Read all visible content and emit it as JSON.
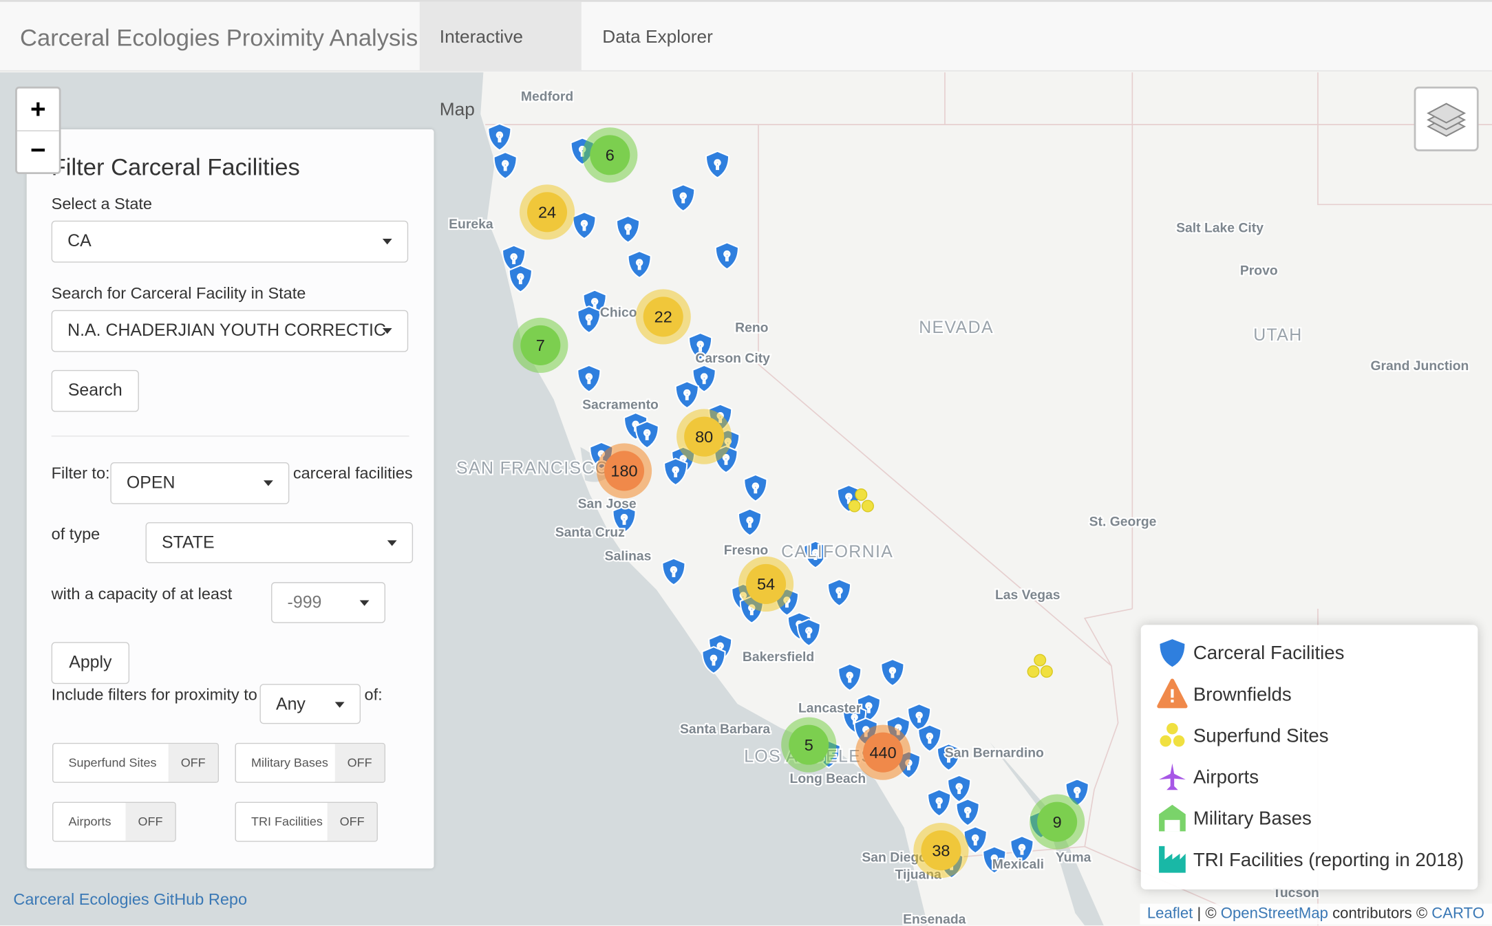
{
  "navbar": {
    "title": "Carceral Ecologies Proximity Analysis",
    "tabs": [
      "Interactive Map",
      "Data Explorer"
    ]
  },
  "zoom": {
    "in": "+",
    "out": "−"
  },
  "filter": {
    "title": "Filter Carceral Facilities",
    "state_label": "Select a State",
    "state": "CA",
    "search_label": "Search for Carceral Facility in State",
    "facility": "N.A. CHADERJIAN YOUTH CORRECTIC",
    "search_button": "Search",
    "filter_to": "Filter to:",
    "status": "OPEN",
    "status_suffix": "carceral facilities",
    "of_type": "of type",
    "type": "STATE",
    "capacity_label": "with a capacity of at least",
    "capacity": "-999",
    "apply": "Apply",
    "proximity_label": "Include filters for proximity to",
    "proximity": "Any",
    "proximity_suffix": "of:",
    "toggles": [
      {
        "label": "Superfund Sites",
        "state": "OFF"
      },
      {
        "label": "Military Bases",
        "state": "OFF"
      },
      {
        "label": "Airports",
        "state": "OFF"
      },
      {
        "label": "TRI Facilities",
        "state": "OFF"
      }
    ]
  },
  "map_labels": [
    "Medford",
    "Eureka",
    "Chico",
    "Reno",
    "Carson City",
    "Sacramento",
    "SAN FRANCISCO",
    "San Jose",
    "Santa Cruz",
    "Salinas",
    "Fresno",
    "CALIFORNIA",
    "Bakersfield",
    "Lancaster",
    "Santa Barbara",
    "LOS ANGELES",
    "Long Beach",
    "San Bernardino",
    "San Diego",
    "Tijuana",
    "Mexicali",
    "Yuma",
    "Ensenada",
    "NEVADA",
    "UTAH",
    "Salt Lake City",
    "Provo",
    "Grand Junction",
    "St. George",
    "Las Vegas",
    "Tucson"
  ],
  "clusters": [
    6,
    24,
    22,
    7,
    80,
    180,
    54,
    5,
    440,
    9,
    38
  ],
  "legend": [
    "Carceral Facilities",
    "Brownfields",
    "Superfund Sites",
    "Airports",
    "Military Bases",
    "TRI Facilities (reporting in 2018)"
  ],
  "github_link": "Carceral Ecologies GitHub Repo",
  "attribution": {
    "leaflet": "Leaflet",
    "sep": "| ©",
    "osm": "OpenStreetMap",
    "contributors": "contributors ©",
    "carto": "CARTO"
  }
}
